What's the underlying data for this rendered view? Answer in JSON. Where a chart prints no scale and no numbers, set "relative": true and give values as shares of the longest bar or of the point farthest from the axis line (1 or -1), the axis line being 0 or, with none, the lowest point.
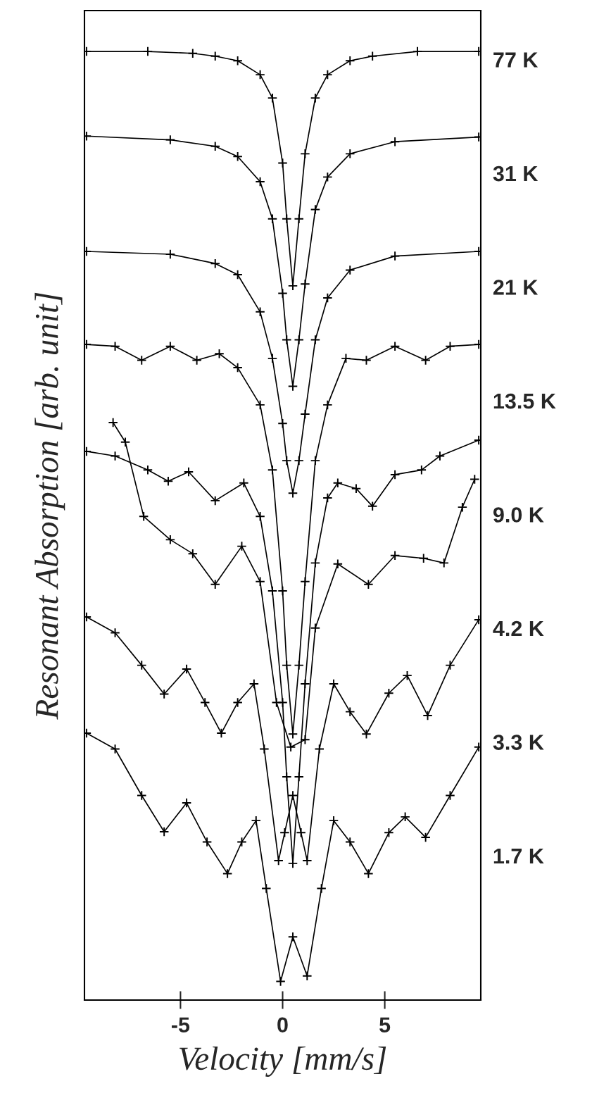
{
  "chart_data": {
    "type": "line",
    "relative": true,
    "xlabel": "Velocity [mm/s]",
    "ylabel": "Resonant Absorption [arb. unit]",
    "xlim": [
      -9.7,
      9.7
    ],
    "xticks": [
      -5,
      0,
      5
    ],
    "tick_labels": "x",
    "grid": false,
    "legend": false,
    "marker": "cross",
    "line_style": "solid",
    "series": [
      {
        "name": "77 K",
        "color": "#000000",
        "x": [
          -9.6,
          -6.6,
          -4.4,
          -3.3,
          -2.2,
          -1.1,
          -0.5,
          0,
          0.2,
          0.5,
          0.8,
          1.1,
          1.6,
          2.2,
          3.3,
          4.4,
          6.6,
          9.6
        ],
        "values": [
          1.0,
          1.0,
          0.998,
          0.995,
          0.99,
          0.975,
          0.95,
          0.88,
          0.82,
          0.748,
          0.82,
          0.89,
          0.95,
          0.975,
          0.99,
          0.995,
          1.0,
          1.0
        ]
      },
      {
        "name": "31 K",
        "color": "#000000",
        "x": [
          -9.6,
          -5.5,
          -3.3,
          -2.2,
          -1.1,
          -0.5,
          0,
          0.2,
          0.5,
          0.8,
          1.1,
          1.6,
          2.2,
          3.3,
          5.5,
          9.6
        ],
        "values": [
          0.909,
          0.905,
          0.898,
          0.887,
          0.86,
          0.82,
          0.74,
          0.69,
          0.64,
          0.69,
          0.75,
          0.83,
          0.865,
          0.89,
          0.903,
          0.908
        ]
      },
      {
        "name": "21 K",
        "color": "#000000",
        "x": [
          -9.6,
          -5.5,
          -3.3,
          -2.2,
          -1.1,
          -0.5,
          0,
          0.2,
          0.5,
          0.8,
          1.1,
          1.6,
          2.2,
          3.3,
          5.5,
          9.6
        ],
        "values": [
          0.785,
          0.782,
          0.772,
          0.76,
          0.72,
          0.67,
          0.6,
          0.56,
          0.525,
          0.56,
          0.61,
          0.69,
          0.735,
          0.765,
          0.78,
          0.785
        ]
      },
      {
        "name": "13.5 K",
        "color": "#000000",
        "x": [
          -9.6,
          -8.2,
          -6.9,
          -5.5,
          -4.2,
          -3.1,
          -2.2,
          -1.1,
          -0.5,
          0,
          0.2,
          0.5,
          0.8,
          1.1,
          1.6,
          2.2,
          3.1,
          4.1,
          5.5,
          7.0,
          8.2,
          9.6
        ],
        "values": [
          0.685,
          0.683,
          0.668,
          0.683,
          0.668,
          0.675,
          0.66,
          0.62,
          0.55,
          0.42,
          0.34,
          0.266,
          0.34,
          0.43,
          0.56,
          0.62,
          0.67,
          0.668,
          0.683,
          0.668,
          0.683,
          0.685
        ]
      },
      {
        "name": "9.0 K",
        "color": "#000000",
        "x": [
          -9.6,
          -8.2,
          -6.6,
          -5.6,
          -4.6,
          -3.3,
          -1.9,
          -1.1,
          -0.5,
          0,
          0.2,
          0.5,
          0.8,
          1.1,
          1.6,
          2.2,
          2.7,
          3.6,
          4.4,
          5.5,
          6.8,
          7.7,
          9.6
        ],
        "values": [
          0.57,
          0.565,
          0.55,
          0.538,
          0.548,
          0.517,
          0.536,
          0.5,
          0.42,
          0.3,
          0.22,
          0.127,
          0.22,
          0.32,
          0.45,
          0.52,
          0.536,
          0.53,
          0.511,
          0.545,
          0.55,
          0.565,
          0.582
        ]
      },
      {
        "name": "4.2 K",
        "color": "#000000",
        "x": [
          -8.3,
          -7.7,
          -6.8,
          -5.5,
          -4.4,
          -3.3,
          -2.0,
          -1.1,
          -0.3,
          0.4,
          1.1,
          1.6,
          2.7,
          4.2,
          5.5,
          6.9,
          7.9,
          8.8,
          9.4
        ],
        "values": [
          0.601,
          0.58,
          0.5,
          0.475,
          0.46,
          0.427,
          0.468,
          0.43,
          0.3,
          0.252,
          0.26,
          0.38,
          0.449,
          0.427,
          0.458,
          0.455,
          0.45,
          0.51,
          0.54
        ]
      },
      {
        "name": "3.3 K",
        "color": "#000000",
        "x": [
          -9.6,
          -8.2,
          -6.9,
          -5.8,
          -4.7,
          -3.8,
          -3.0,
          -2.2,
          -1.4,
          -0.9,
          -0.2,
          0.1,
          0.5,
          0.9,
          1.2,
          1.8,
          2.5,
          3.3,
          4.1,
          5.2,
          6.1,
          7.1,
          8.2,
          9.6
        ],
        "values": [
          0.392,
          0.375,
          0.34,
          0.309,
          0.336,
          0.3,
          0.267,
          0.3,
          0.32,
          0.25,
          0.13,
          0.16,
          0.2,
          0.16,
          0.13,
          0.25,
          0.32,
          0.29,
          0.266,
          0.31,
          0.329,
          0.286,
          0.34,
          0.389
        ]
      },
      {
        "name": "1.7 K",
        "color": "#000000",
        "x": [
          -9.6,
          -8.2,
          -6.9,
          -5.8,
          -4.7,
          -3.7,
          -2.7,
          -2.0,
          -1.3,
          -0.8,
          -0.1,
          0.5,
          1.2,
          1.9,
          2.5,
          3.3,
          4.2,
          5.2,
          6.0,
          7.0,
          8.2,
          9.6
        ],
        "values": [
          0.267,
          0.25,
          0.2,
          0.161,
          0.192,
          0.15,
          0.116,
          0.15,
          0.173,
          0.1,
          0.0,
          0.048,
          0.006,
          0.1,
          0.173,
          0.15,
          0.116,
          0.16,
          0.177,
          0.155,
          0.2,
          0.252
        ]
      }
    ]
  }
}
